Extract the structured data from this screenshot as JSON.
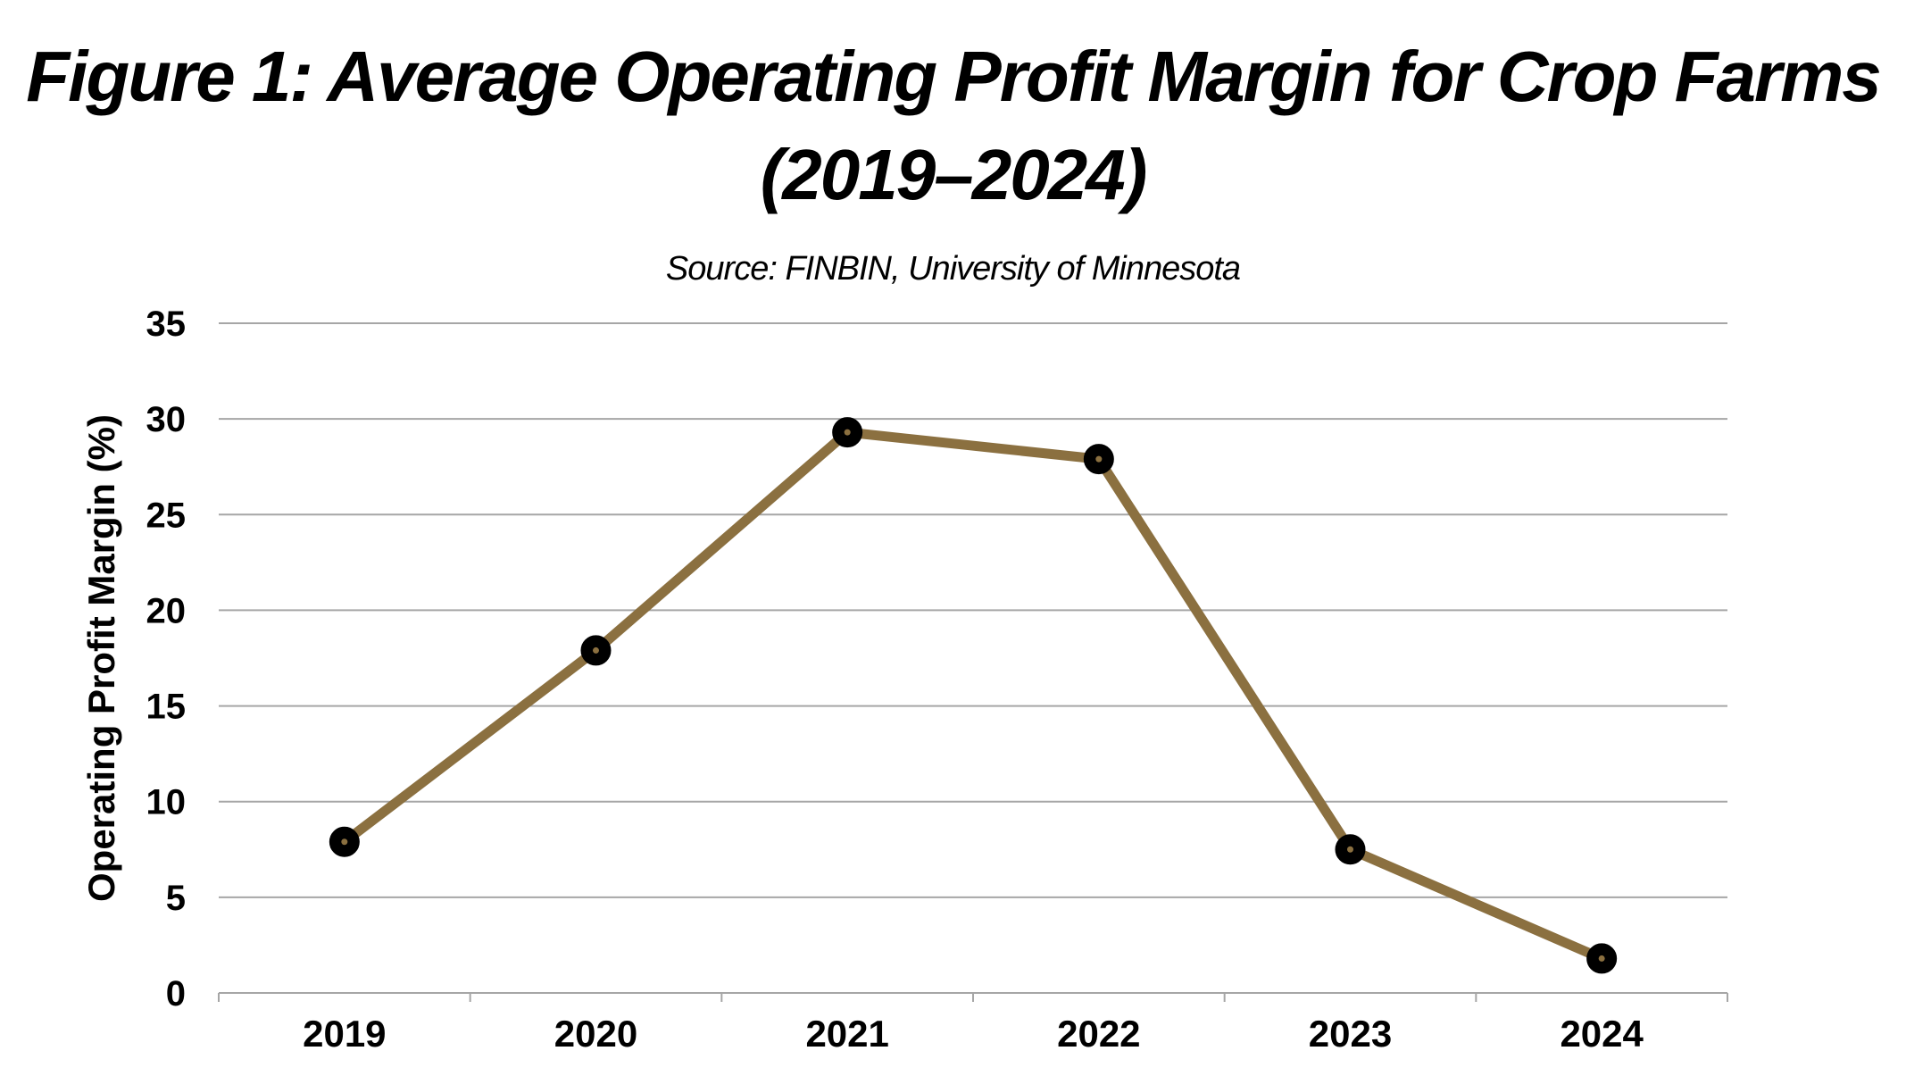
{
  "chart_data": {
    "type": "line",
    "title": "Figure 1: Average Operating Profit Margin for Crop Farms",
    "title_line2": "(2019–2024)",
    "subtitle": "Source: FINBIN, University of Minnesota",
    "xlabel": "",
    "ylabel": "Operating Profit Margin (%)",
    "categories": [
      "2019",
      "2020",
      "2021",
      "2022",
      "2023",
      "2024"
    ],
    "series": [
      {
        "values": [
          7.9,
          17.9,
          29.3,
          27.9,
          7.5,
          1.8
        ]
      }
    ],
    "ylim": [
      0,
      35
    ],
    "yticks": [
      0,
      5,
      10,
      15,
      20,
      25,
      30,
      35
    ],
    "grid": true,
    "legend": "none",
    "colors": {
      "line": "#8b7040",
      "marker": "#000000",
      "grid": "#a6a6a6",
      "axis": "#a6a6a6"
    }
  }
}
